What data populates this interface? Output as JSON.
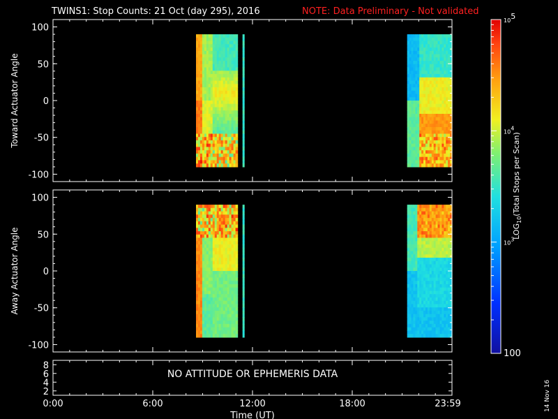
{
  "title": {
    "main": "TWINS1: Stop Counts: 21 Oct (day 295), 2016",
    "note": "NOTE: Data Preliminary - Not validated"
  },
  "date_stamp": "14 Nov 16",
  "panel_top": {
    "ylabel": "Toward Actuator Angle",
    "yticks": [
      "100",
      "50",
      "0",
      "-50",
      "-100"
    ]
  },
  "panel_bottom": {
    "ylabel": "Away Actuator Angle",
    "yticks": [
      "100",
      "50",
      "0",
      "-50",
      "-100"
    ]
  },
  "ephemeris": {
    "message": "NO ATTITUDE OR EPHEMERIS DATA",
    "yticks": [
      "8",
      "6",
      "4",
      "2"
    ]
  },
  "xaxis": {
    "label": "Time (UT)",
    "ticks": [
      "0:00",
      "6:00",
      "12:00",
      "18:00",
      "23:59"
    ]
  },
  "colorbar": {
    "label": "LOG10(Total Stops per Scan)",
    "ticks": [
      "10^5",
      "10^4",
      "10^3",
      "100"
    ]
  },
  "chart_data": [
    {
      "type": "heatmap",
      "title": "TWINS1: Stop Counts: 21 Oct (day 295), 2016",
      "xlabel": "Time (UT)",
      "ylabel": "Toward Actuator Angle",
      "xlim": [
        0,
        24
      ],
      "ylim": [
        -110,
        110
      ],
      "color_scale": "log",
      "zlim": [
        100,
        100000
      ],
      "data_intervals_hours": [
        [
          8.6,
          9.6
        ],
        [
          9.6,
          11.1
        ],
        [
          11.4,
          11.5
        ],
        [
          21.3,
          24.0
        ]
      ],
      "angle_range": [
        -90,
        90
      ]
    },
    {
      "type": "heatmap",
      "xlabel": "Time (UT)",
      "ylabel": "Away Actuator Angle",
      "xlim": [
        0,
        24
      ],
      "ylim": [
        -110,
        110
      ],
      "color_scale": "log",
      "zlim": [
        100,
        100000
      ],
      "data_intervals_hours": [
        [
          8.6,
          9.6
        ],
        [
          9.6,
          11.1
        ],
        [
          11.4,
          11.5
        ],
        [
          21.3,
          24.0
        ]
      ],
      "angle_range": [
        -90,
        90
      ]
    }
  ],
  "colors": {
    "note": "#ff2020",
    "axes": "#ffffff",
    "background": "#000000"
  }
}
